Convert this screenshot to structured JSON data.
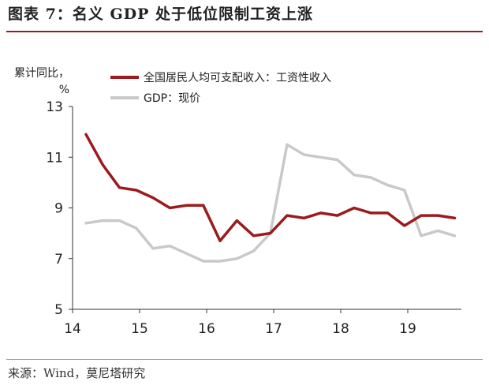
{
  "header": {
    "title": "图表 7：名义 GDP 处于低位限制工资上涨"
  },
  "footer": {
    "source": "来源：Wind，莫尼塔研究"
  },
  "chart_data": {
    "type": "line",
    "ylabel": "累计同比，%",
    "ylim": [
      5,
      13
    ],
    "yticks": [
      5,
      7,
      9,
      11,
      13
    ],
    "xlim": [
      2014.0,
      2019.8
    ],
    "xticks": [
      {
        "value": 2014,
        "label": "14"
      },
      {
        "value": 2015,
        "label": "15"
      },
      {
        "value": 2016,
        "label": "16"
      },
      {
        "value": 2017,
        "label": "17"
      },
      {
        "value": 2018,
        "label": "18"
      },
      {
        "value": 2019,
        "label": "19"
      }
    ],
    "grid": false,
    "legend": "top",
    "series": [
      {
        "name": "全国居民人均可支配收入：工资性收入",
        "color": "#9b1b1e",
        "x": [
          2014.2,
          2014.45,
          2014.7,
          2014.95,
          2015.2,
          2015.45,
          2015.7,
          2015.95,
          2016.2,
          2016.45,
          2016.7,
          2016.95,
          2017.2,
          2017.45,
          2017.7,
          2017.95,
          2018.2,
          2018.45,
          2018.7,
          2018.95,
          2019.2,
          2019.45,
          2019.7
        ],
        "values": [
          11.9,
          10.7,
          9.8,
          9.7,
          9.4,
          9.0,
          9.1,
          9.1,
          7.7,
          8.5,
          7.9,
          8.0,
          8.7,
          8.6,
          8.8,
          8.7,
          9.0,
          8.8,
          8.8,
          8.3,
          8.7,
          8.7,
          8.6
        ]
      },
      {
        "name": "GDP：现价",
        "color": "#c9c9c9",
        "x": [
          2014.2,
          2014.45,
          2014.7,
          2014.95,
          2015.2,
          2015.45,
          2015.7,
          2015.95,
          2016.2,
          2016.45,
          2016.7,
          2016.95,
          2017.2,
          2017.45,
          2017.7,
          2017.95,
          2018.2,
          2018.45,
          2018.7,
          2018.95,
          2019.2,
          2019.45,
          2019.7
        ],
        "values": [
          8.4,
          8.5,
          8.5,
          8.2,
          7.4,
          7.5,
          7.2,
          6.9,
          6.9,
          7.0,
          7.3,
          8.0,
          11.5,
          11.1,
          11.0,
          10.9,
          10.3,
          10.2,
          9.9,
          9.7,
          7.9,
          8.1,
          7.9
        ]
      }
    ]
  }
}
